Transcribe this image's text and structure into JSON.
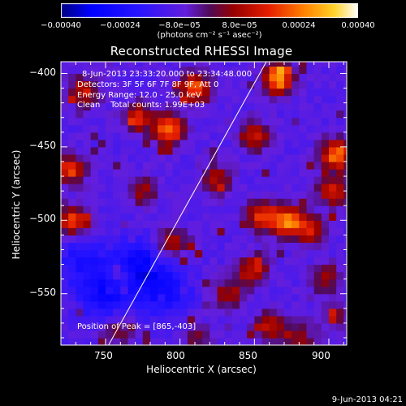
{
  "chart_data": {
    "type": "heatmap",
    "title": "Reconstructed RHESSI Image",
    "xlabel": "Heliocentric X (arcsec)",
    "ylabel": "Heliocentric Y (arcsec)",
    "xlim": [
      720,
      912
    ],
    "ylim": [
      -585,
      -392
    ],
    "x_ticks": [
      750,
      800,
      850,
      900
    ],
    "x_tick_labels": [
      "750",
      "800",
      "850",
      "900"
    ],
    "y_ticks": [
      -400,
      -450,
      -500,
      -550
    ],
    "y_tick_labels": [
      "−400",
      "−450",
      "−500",
      "−550"
    ],
    "colorbar": {
      "ticks": [
        -0.0004,
        -0.00024,
        -8e-05,
        8e-05,
        0.00024,
        0.0004
      ],
      "tick_labels": [
        "−0.00040",
        "−0.00024",
        "−8.0e−05",
        "8.0e−05",
        "0.00024",
        "0.00040"
      ],
      "unit_text": "(photons cm⁻² s⁻¹ asec⁻²)",
      "range": [
        -0.0004,
        0.0004
      ]
    },
    "annotations": [
      "8-Jun-2013 23:33:20.000 to 23:34:48.000",
      "Detectors: 3F 5F 6F 7F 8F 9F, Att 0",
      "Energy Range: 12.0 - 25.0 keV",
      "Clean    Total counts: 1.99E+03"
    ],
    "peak_text": "Position of Peak = [865,-403]",
    "peak": [
      865,
      -403
    ],
    "limb_line": {
      "x": [
        752,
        858
      ],
      "y": [
        -585,
        -392
      ]
    },
    "hot_spots": [
      {
        "x": 810,
        "y": -410,
        "v": 0.00032
      },
      {
        "x": 866,
        "y": -403,
        "v": 0.0004
      },
      {
        "x": 793,
        "y": -438,
        "v": 0.00034
      },
      {
        "x": 772,
        "y": -430,
        "v": 0.00024
      },
      {
        "x": 850,
        "y": -442,
        "v": 0.00022
      },
      {
        "x": 736,
        "y": -412,
        "v": 0.00022
      },
      {
        "x": 726,
        "y": -465,
        "v": 0.00026
      },
      {
        "x": 905,
        "y": -455,
        "v": 0.00034
      },
      {
        "x": 903,
        "y": -480,
        "v": 0.00024
      },
      {
        "x": 872,
        "y": -500,
        "v": 0.00036
      },
      {
        "x": 855,
        "y": -497,
        "v": 0.00028
      },
      {
        "x": 887,
        "y": -507,
        "v": 0.00022
      },
      {
        "x": 728,
        "y": -500,
        "v": 0.00028
      },
      {
        "x": 825,
        "y": -472,
        "v": 0.00018
      },
      {
        "x": 775,
        "y": -480,
        "v": 0.00016
      },
      {
        "x": 795,
        "y": -515,
        "v": 0.0002
      },
      {
        "x": 850,
        "y": -533,
        "v": 0.00022
      },
      {
        "x": 833,
        "y": -550,
        "v": 0.00018
      },
      {
        "x": 898,
        "y": -540,
        "v": 0.00016
      },
      {
        "x": 860,
        "y": -572,
        "v": 0.0002
      },
      {
        "x": 880,
        "y": -580,
        "v": 0.00016
      },
      {
        "x": 758,
        "y": -575,
        "v": 0.00014
      },
      {
        "x": 812,
        "y": -580,
        "v": 0.00012
      },
      {
        "x": 760,
        "y": -538,
        "v": 0.00016
      },
      {
        "x": 905,
        "y": -565,
        "v": 0.00012
      }
    ],
    "cold_spots": [
      {
        "x": 770,
        "y": -532,
        "v": -0.00022
      },
      {
        "x": 750,
        "y": -550,
        "v": -0.00018
      },
      {
        "x": 790,
        "y": -548,
        "v": -0.00016
      },
      {
        "x": 733,
        "y": -528,
        "v": -0.00012
      }
    ]
  },
  "footer": {
    "timestamp": "9-Jun-2013 04:21"
  }
}
